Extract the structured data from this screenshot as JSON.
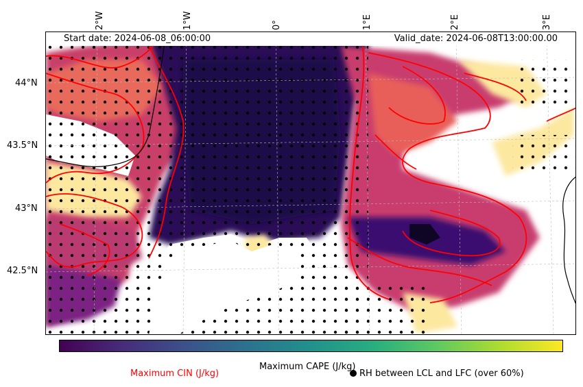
{
  "map": {
    "start_date": "Start date: 2024-06-08_06:00:00",
    "valid_date": "Valid_date: 2024-06-08T13:00:00.00",
    "lon_ticks": [
      "2°W",
      "1°W",
      "0°",
      "1°E",
      "2°E",
      "3°E"
    ],
    "lat_ticks": [
      "44°N",
      "43.5°N",
      "43°N",
      "42.5°N"
    ]
  },
  "legend": {
    "colorbar_label": "Maximum CAPE (J/kg)",
    "cin_label": "Maximum CIN (J/kg)",
    "rh_label": "RH between LCL and LFC (over 60%)",
    "cin_color": "#ff0000",
    "colormap": "viridis"
  }
}
